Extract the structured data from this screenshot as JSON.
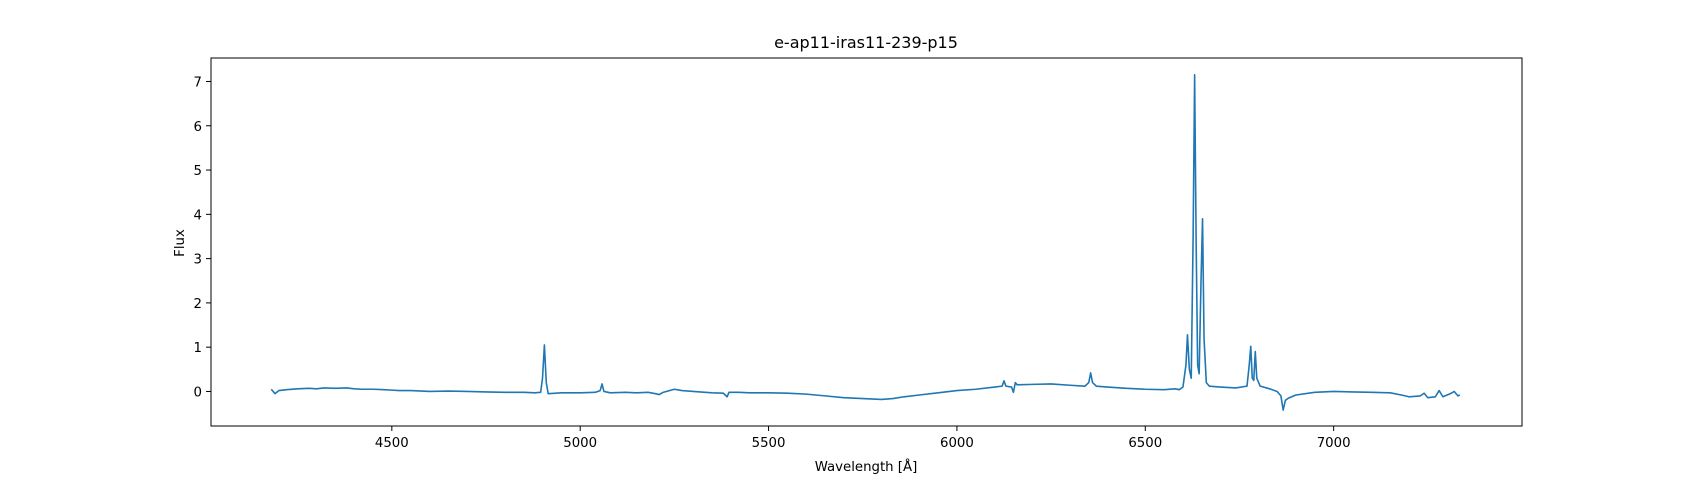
{
  "chart_data": {
    "type": "line",
    "title": "e-ap11-iras11-239-p15",
    "xlabel": "Wavelength [Å]",
    "ylabel": "Flux",
    "xlim": [
      4020,
      7500
    ],
    "ylim": [
      -0.78,
      7.53
    ],
    "xticks": [
      4500,
      5000,
      5500,
      6000,
      6500,
      7000
    ],
    "yticks": [
      0,
      1,
      2,
      3,
      4,
      5,
      6,
      7
    ],
    "grid": false,
    "series": [
      {
        "color": "#1f77b4",
        "points": [
          [
            4180,
            0.05
          ],
          [
            4190,
            -0.05
          ],
          [
            4200,
            0.02
          ],
          [
            4220,
            0.04
          ],
          [
            4250,
            0.06
          ],
          [
            4280,
            0.07
          ],
          [
            4300,
            0.06
          ],
          [
            4320,
            0.08
          ],
          [
            4350,
            0.07
          ],
          [
            4380,
            0.08
          ],
          [
            4400,
            0.06
          ],
          [
            4420,
            0.05
          ],
          [
            4450,
            0.05
          ],
          [
            4480,
            0.04
          ],
          [
            4500,
            0.03
          ],
          [
            4520,
            0.02
          ],
          [
            4550,
            0.02
          ],
          [
            4580,
            0.01
          ],
          [
            4600,
            0.0
          ],
          [
            4650,
            0.01
          ],
          [
            4700,
            0.0
          ],
          [
            4750,
            -0.01
          ],
          [
            4800,
            -0.02
          ],
          [
            4850,
            -0.02
          ],
          [
            4880,
            -0.03
          ],
          [
            4895,
            -0.02
          ],
          [
            4900,
            0.3
          ],
          [
            4905,
            1.05
          ],
          [
            4910,
            0.2
          ],
          [
            4915,
            -0.05
          ],
          [
            4950,
            -0.03
          ],
          [
            5000,
            -0.03
          ],
          [
            5040,
            -0.02
          ],
          [
            5053,
            0.02
          ],
          [
            5058,
            0.17
          ],
          [
            5063,
            0.0
          ],
          [
            5080,
            -0.03
          ],
          [
            5120,
            -0.02
          ],
          [
            5150,
            -0.03
          ],
          [
            5180,
            -0.02
          ],
          [
            5200,
            -0.05
          ],
          [
            5210,
            -0.07
          ],
          [
            5220,
            -0.02
          ],
          [
            5250,
            0.05
          ],
          [
            5270,
            0.02
          ],
          [
            5300,
            0.0
          ],
          [
            5350,
            -0.03
          ],
          [
            5380,
            -0.04
          ],
          [
            5390,
            -0.12
          ],
          [
            5395,
            -0.02
          ],
          [
            5420,
            -0.02
          ],
          [
            5450,
            -0.03
          ],
          [
            5500,
            -0.03
          ],
          [
            5550,
            -0.04
          ],
          [
            5600,
            -0.06
          ],
          [
            5650,
            -0.1
          ],
          [
            5700,
            -0.14
          ],
          [
            5750,
            -0.16
          ],
          [
            5800,
            -0.18
          ],
          [
            5830,
            -0.16
          ],
          [
            5860,
            -0.12
          ],
          [
            5900,
            -0.08
          ],
          [
            5950,
            -0.03
          ],
          [
            6000,
            0.02
          ],
          [
            6050,
            0.05
          ],
          [
            6100,
            0.1
          ],
          [
            6120,
            0.12
          ],
          [
            6125,
            0.24
          ],
          [
            6130,
            0.12
          ],
          [
            6145,
            0.1
          ],
          [
            6150,
            -0.02
          ],
          [
            6155,
            0.2
          ],
          [
            6160,
            0.15
          ],
          [
            6200,
            0.16
          ],
          [
            6250,
            0.17
          ],
          [
            6300,
            0.14
          ],
          [
            6340,
            0.12
          ],
          [
            6350,
            0.2
          ],
          [
            6355,
            0.42
          ],
          [
            6360,
            0.2
          ],
          [
            6370,
            0.12
          ],
          [
            6400,
            0.1
          ],
          [
            6450,
            0.07
          ],
          [
            6500,
            0.05
          ],
          [
            6550,
            0.04
          ],
          [
            6580,
            0.06
          ],
          [
            6590,
            0.04
          ],
          [
            6600,
            0.1
          ],
          [
            6608,
            0.6
          ],
          [
            6612,
            1.28
          ],
          [
            6617,
            0.5
          ],
          [
            6622,
            0.3
          ],
          [
            6627,
            3.5
          ],
          [
            6631,
            7.15
          ],
          [
            6635,
            3.4
          ],
          [
            6639,
            0.6
          ],
          [
            6643,
            0.4
          ],
          [
            6648,
            2.5
          ],
          [
            6652,
            3.9
          ],
          [
            6656,
            1.2
          ],
          [
            6662,
            0.2
          ],
          [
            6670,
            0.12
          ],
          [
            6700,
            0.1
          ],
          [
            6740,
            0.08
          ],
          [
            6770,
            0.12
          ],
          [
            6776,
            0.6
          ],
          [
            6780,
            1.02
          ],
          [
            6784,
            0.3
          ],
          [
            6788,
            0.25
          ],
          [
            6792,
            0.9
          ],
          [
            6796,
            0.3
          ],
          [
            6805,
            0.12
          ],
          [
            6830,
            0.06
          ],
          [
            6850,
            0.0
          ],
          [
            6860,
            -0.1
          ],
          [
            6866,
            -0.42
          ],
          [
            6872,
            -0.2
          ],
          [
            6880,
            -0.15
          ],
          [
            6900,
            -0.08
          ],
          [
            6950,
            -0.02
          ],
          [
            7000,
            0.0
          ],
          [
            7050,
            -0.01
          ],
          [
            7100,
            -0.02
          ],
          [
            7150,
            -0.03
          ],
          [
            7180,
            -0.08
          ],
          [
            7200,
            -0.12
          ],
          [
            7230,
            -0.1
          ],
          [
            7240,
            -0.04
          ],
          [
            7250,
            -0.14
          ],
          [
            7270,
            -0.12
          ],
          [
            7280,
            0.02
          ],
          [
            7290,
            -0.12
          ],
          [
            7310,
            -0.05
          ],
          [
            7320,
            0.0
          ],
          [
            7330,
            -0.1
          ],
          [
            7335,
            -0.08
          ]
        ]
      }
    ]
  }
}
